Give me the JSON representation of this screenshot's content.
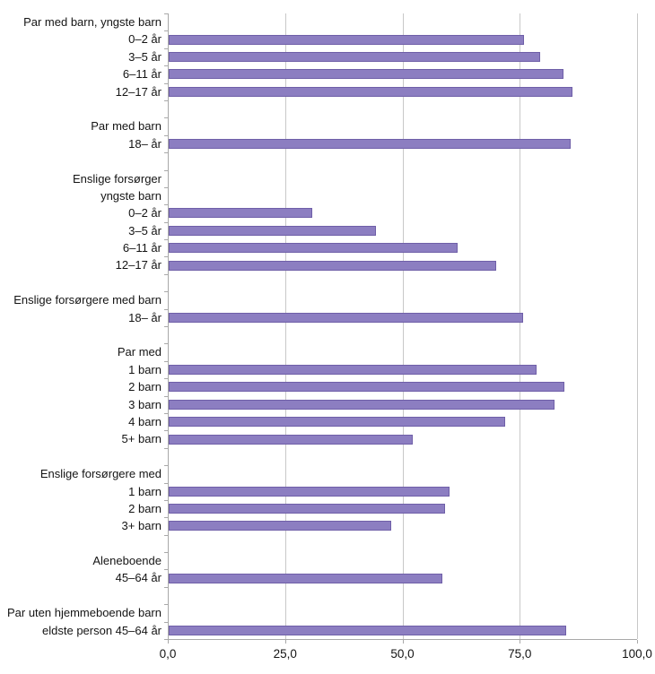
{
  "chart_data": {
    "type": "bar",
    "orientation": "horizontal",
    "title": "",
    "xlabel": "",
    "ylabel": "",
    "xlim": [
      0,
      100
    ],
    "grid": "vertical",
    "legend": "none",
    "colors": {
      "bar_fill": "#8C7EC1",
      "bar_border": "#6F5FA8",
      "gridline": "#C8C8C8",
      "axis": "#A9A9A9",
      "text": "#141414",
      "background": "#FFFFFF"
    },
    "xticks": [
      {
        "value": 0,
        "label": "0,0"
      },
      {
        "value": 25,
        "label": "25,0"
      },
      {
        "value": 50,
        "label": "50,0"
      },
      {
        "value": 75,
        "label": "75,0"
      },
      {
        "value": 100,
        "label": "100,0"
      }
    ],
    "rows": [
      {
        "label": "Par med barn, yngste barn",
        "value": null
      },
      {
        "label": "0–2 år",
        "value": 75.5
      },
      {
        "label": "3–5 år",
        "value": 79.0
      },
      {
        "label": "6–11 år",
        "value": 84.0
      },
      {
        "label": "12–17 år",
        "value": 85.8
      },
      {
        "label": "",
        "value": null
      },
      {
        "label": "Par med barn",
        "value": null
      },
      {
        "label": "18– år",
        "value": 85.5
      },
      {
        "label": "",
        "value": null
      },
      {
        "label": "Enslige forsørger",
        "value": null
      },
      {
        "label": "yngste barn",
        "value": null
      },
      {
        "label": "0–2 år",
        "value": 30.4
      },
      {
        "label": "3–5 år",
        "value": 44.0
      },
      {
        "label": "6–11 år",
        "value": 61.3
      },
      {
        "label": "12–17 år",
        "value": 69.6
      },
      {
        "label": "",
        "value": null
      },
      {
        "label": "Enslige forsørgere med barn",
        "value": null
      },
      {
        "label": "18– år",
        "value": 75.4
      },
      {
        "label": "",
        "value": null
      },
      {
        "label": "Par med",
        "value": null
      },
      {
        "label": "1 barn",
        "value": 78.2
      },
      {
        "label": "2 barn",
        "value": 84.2
      },
      {
        "label": "3 barn",
        "value": 82.0
      },
      {
        "label": "4 barn",
        "value": 71.5
      },
      {
        "label": "5+ barn",
        "value": 51.9
      },
      {
        "label": "",
        "value": null
      },
      {
        "label": "Enslige forsørgere med",
        "value": null
      },
      {
        "label": "1 barn",
        "value": 59.7
      },
      {
        "label": "2 barn",
        "value": 58.7
      },
      {
        "label": "3+ barn",
        "value": 47.3
      },
      {
        "label": "",
        "value": null
      },
      {
        "label": "Aleneboende",
        "value": null
      },
      {
        "label": "45–64 år",
        "value": 58.1
      },
      {
        "label": "",
        "value": null
      },
      {
        "label": "Par uten hjemmeboende barn",
        "value": null
      },
      {
        "label": "eldste person 45–64 år",
        "value": 84.5
      }
    ]
  }
}
